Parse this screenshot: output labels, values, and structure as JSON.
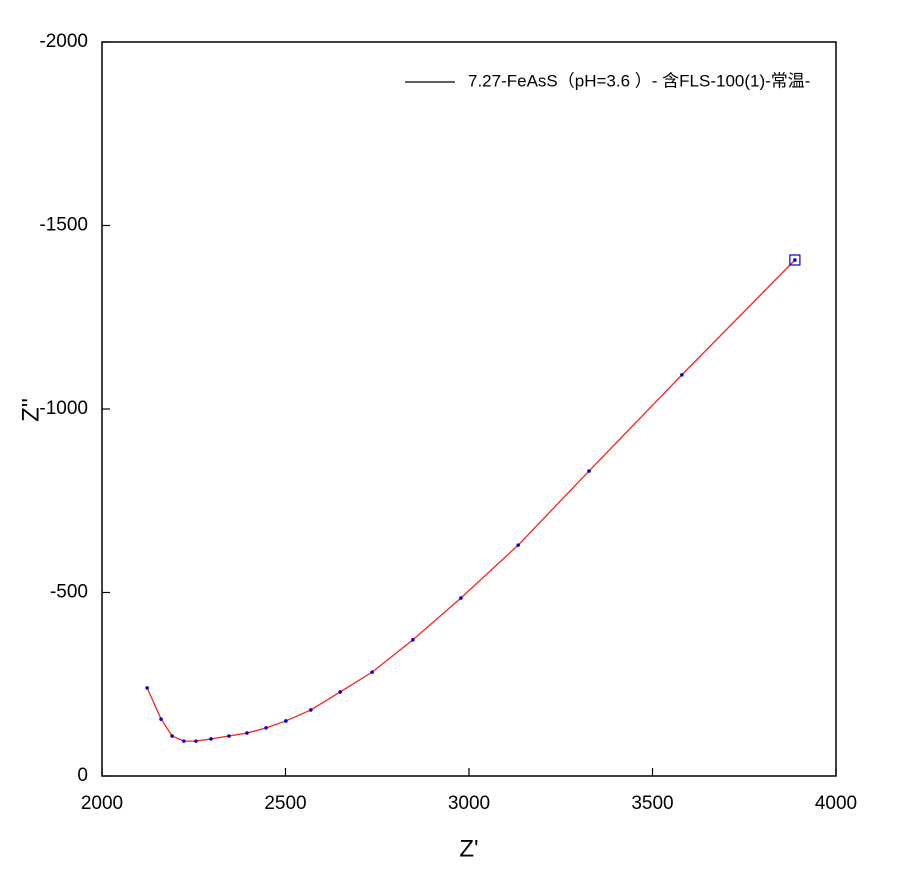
{
  "chart_data": {
    "type": "line",
    "x_label": "Z'",
    "y_label": "Z''",
    "xlim": [
      2000,
      4000
    ],
    "xticks": [
      2000,
      2500,
      3000,
      3500,
      4000
    ],
    "ylim": [
      0,
      -2000
    ],
    "yticks": [
      -2000,
      -1500,
      -1000,
      -500,
      0
    ],
    "legend": "top-right",
    "series": [
      {
        "name": "7.27-FeAsS（pH=3.6 ）- 含FLS-100(1)-常温-",
        "color": "#ff2020",
        "marker_color": "#0000cc",
        "x": [
          2123,
          2161,
          2191,
          2223,
          2256,
          2297,
          2346,
          2395,
          2447,
          2501,
          2569,
          2649,
          2736,
          2847,
          2978,
          3134,
          3327,
          3580,
          3888
        ],
        "values": [
          -240,
          -155,
          -109,
          -95,
          -95,
          -101,
          -109,
          -117,
          -131,
          -150,
          -180,
          -229,
          -283,
          -371,
          -485,
          -629,
          -831,
          -1093,
          -1406
        ]
      }
    ]
  }
}
